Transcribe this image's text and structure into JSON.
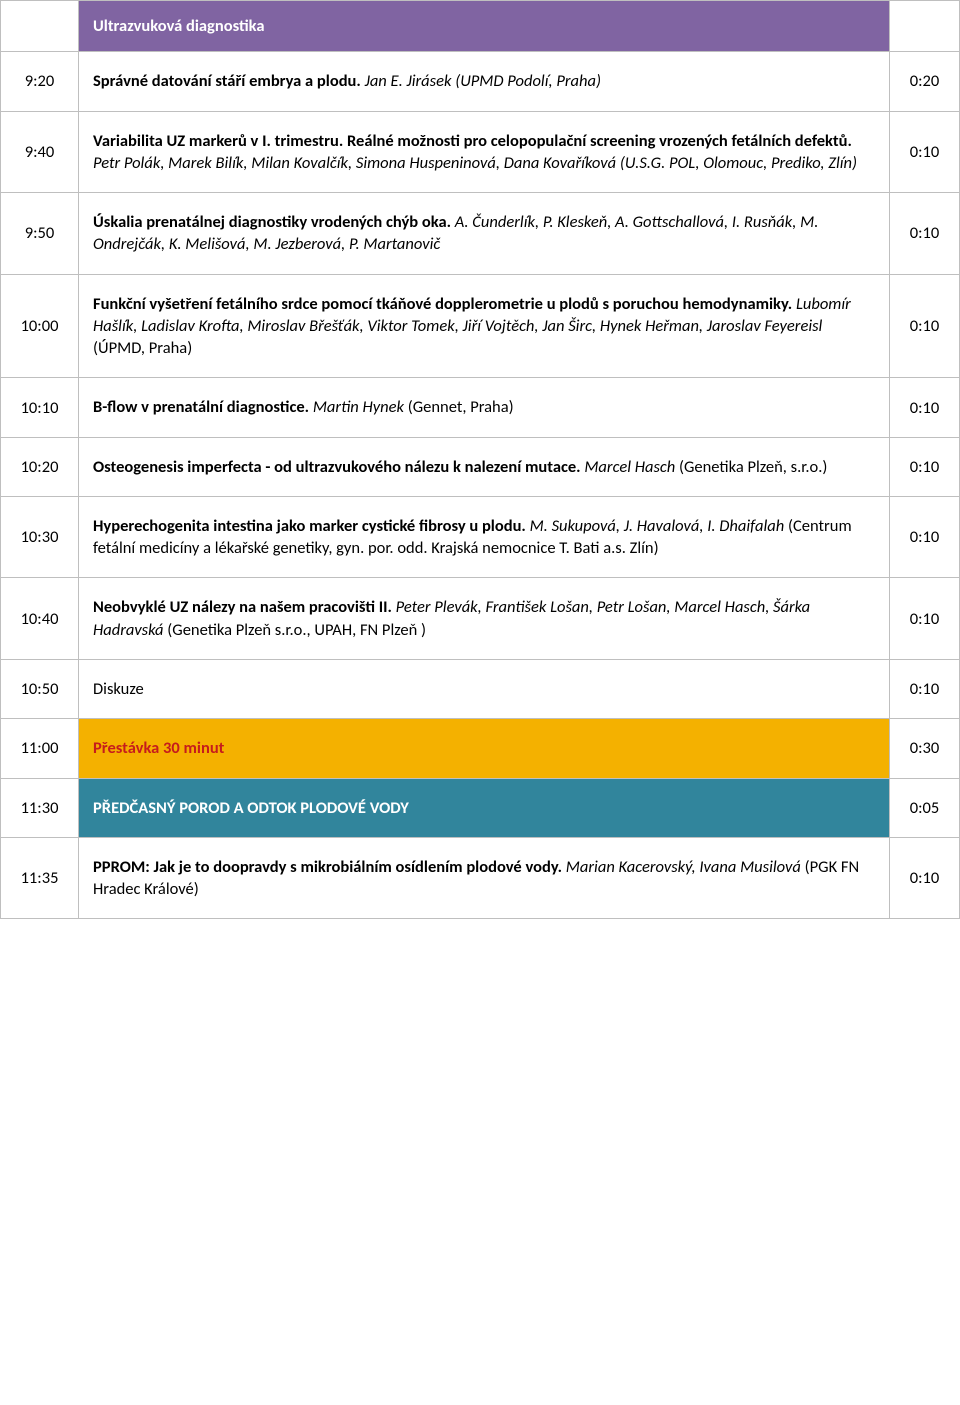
{
  "header1": {
    "title": "Ultrazvuková diagnostika"
  },
  "rows": {
    "r1": {
      "time": "9:20",
      "title": "Správné datování stáří embrya a plodu.",
      "authors": "Jan E. Jirásek (UPMD Podolí, Praha)",
      "dur": "0:20"
    },
    "r2": {
      "time": "9:40",
      "title": "Variabilita UZ markerů v I. trimestru. Reálné možnosti pro celopopulační screening vrozených fetálních defektů.",
      "authors": "Petr Polák, Marek Bilík, Milan Kovalčík, Simona Huspeninová, Dana Kovaříková (U.S.G. POL, Olomouc, Prediko, Zlín)",
      "dur": "0:10"
    },
    "r3": {
      "time": "9:50",
      "title": "Úskalia prenatálnej diagnostiky vrodených chýb oka.",
      "authors": "A. Čunderlík, P. Kleskeň, A. Gottschallová, I. Rusňák, M. Ondrejčák, K. Melišová, M. Jezberová, P. Martanovič",
      "dur": "0:10"
    },
    "r4": {
      "time": "10:00",
      "title": "Funkční vyšetření fetálního srdce pomocí tkáňové dopplerometrie u plodů s poruchou hemodynamiky.",
      "authors_ital": "Lubomír Hašlík, Ladislav Krofta, Miroslav Břešťák, Viktor Tomek, Jiří Vojtěch, Jan Širc, Hynek Heřman, Jaroslav Feyereisl",
      "authors_tail": " (ÚPMD, Praha)",
      "dur": "0:10"
    },
    "r5": {
      "time": "10:10",
      "title": "B-flow v prenatální diagnostice.",
      "authors_ital": "Martin Hynek",
      "authors_tail": " (Gennet, Praha)",
      "dur": "0:10"
    },
    "r6": {
      "time": "10:20",
      "title": "Osteogenesis imperfecta - od ultrazvukového nálezu k nalezení mutace.",
      "authors_ital": "Marcel Hasch",
      "authors_tail": " (Genetika Plzeň, s.r.o.)",
      "dur": "0:10"
    },
    "r7": {
      "time": "10:30",
      "title": "Hyperechogenita intestina jako marker cystické fibrosy u plodu.",
      "authors_ital": "M. Sukupová, J. Havalová, I. Dhaifalah",
      "authors_tail": " (Centrum fetální medicíny a lékařské genetiky, gyn. por. odd. Krajská nemocnice T. Bati a.s. Zlín)",
      "dur": "0:10"
    },
    "r8": {
      "time": "10:40",
      "title": "Neobvyklé UZ nálezy na našem pracovišti II.",
      "authors_ital": "Peter Plevák, František Lošan, Petr Lošan, Marcel Hasch, Šárka Hadravská",
      "authors_tail": " (Genetika Plzeň s.r.o., UPAH, FN Plzeň )",
      "dur": "0:10"
    },
    "r9": {
      "time": "10:50",
      "title": "Diskuze",
      "dur": "0:10"
    },
    "r10": {
      "time": "11:00",
      "title": "Přestávka 30 minut",
      "dur": "0:30"
    },
    "r11": {
      "time": "11:30",
      "title": "PŘEDČASNÝ POROD A ODTOK PLODOVÉ VODY",
      "dur": "0:05"
    },
    "r12": {
      "time": "11:35",
      "title": "PPROM: Jak je to doopravdy s mikrobiálním osídlením plodové vody.",
      "authors_ital": "Marian Kacerovský, Ivana Musilová",
      "authors_tail": " (PGK FN Hradec Králové)",
      "dur": "0:10"
    }
  }
}
